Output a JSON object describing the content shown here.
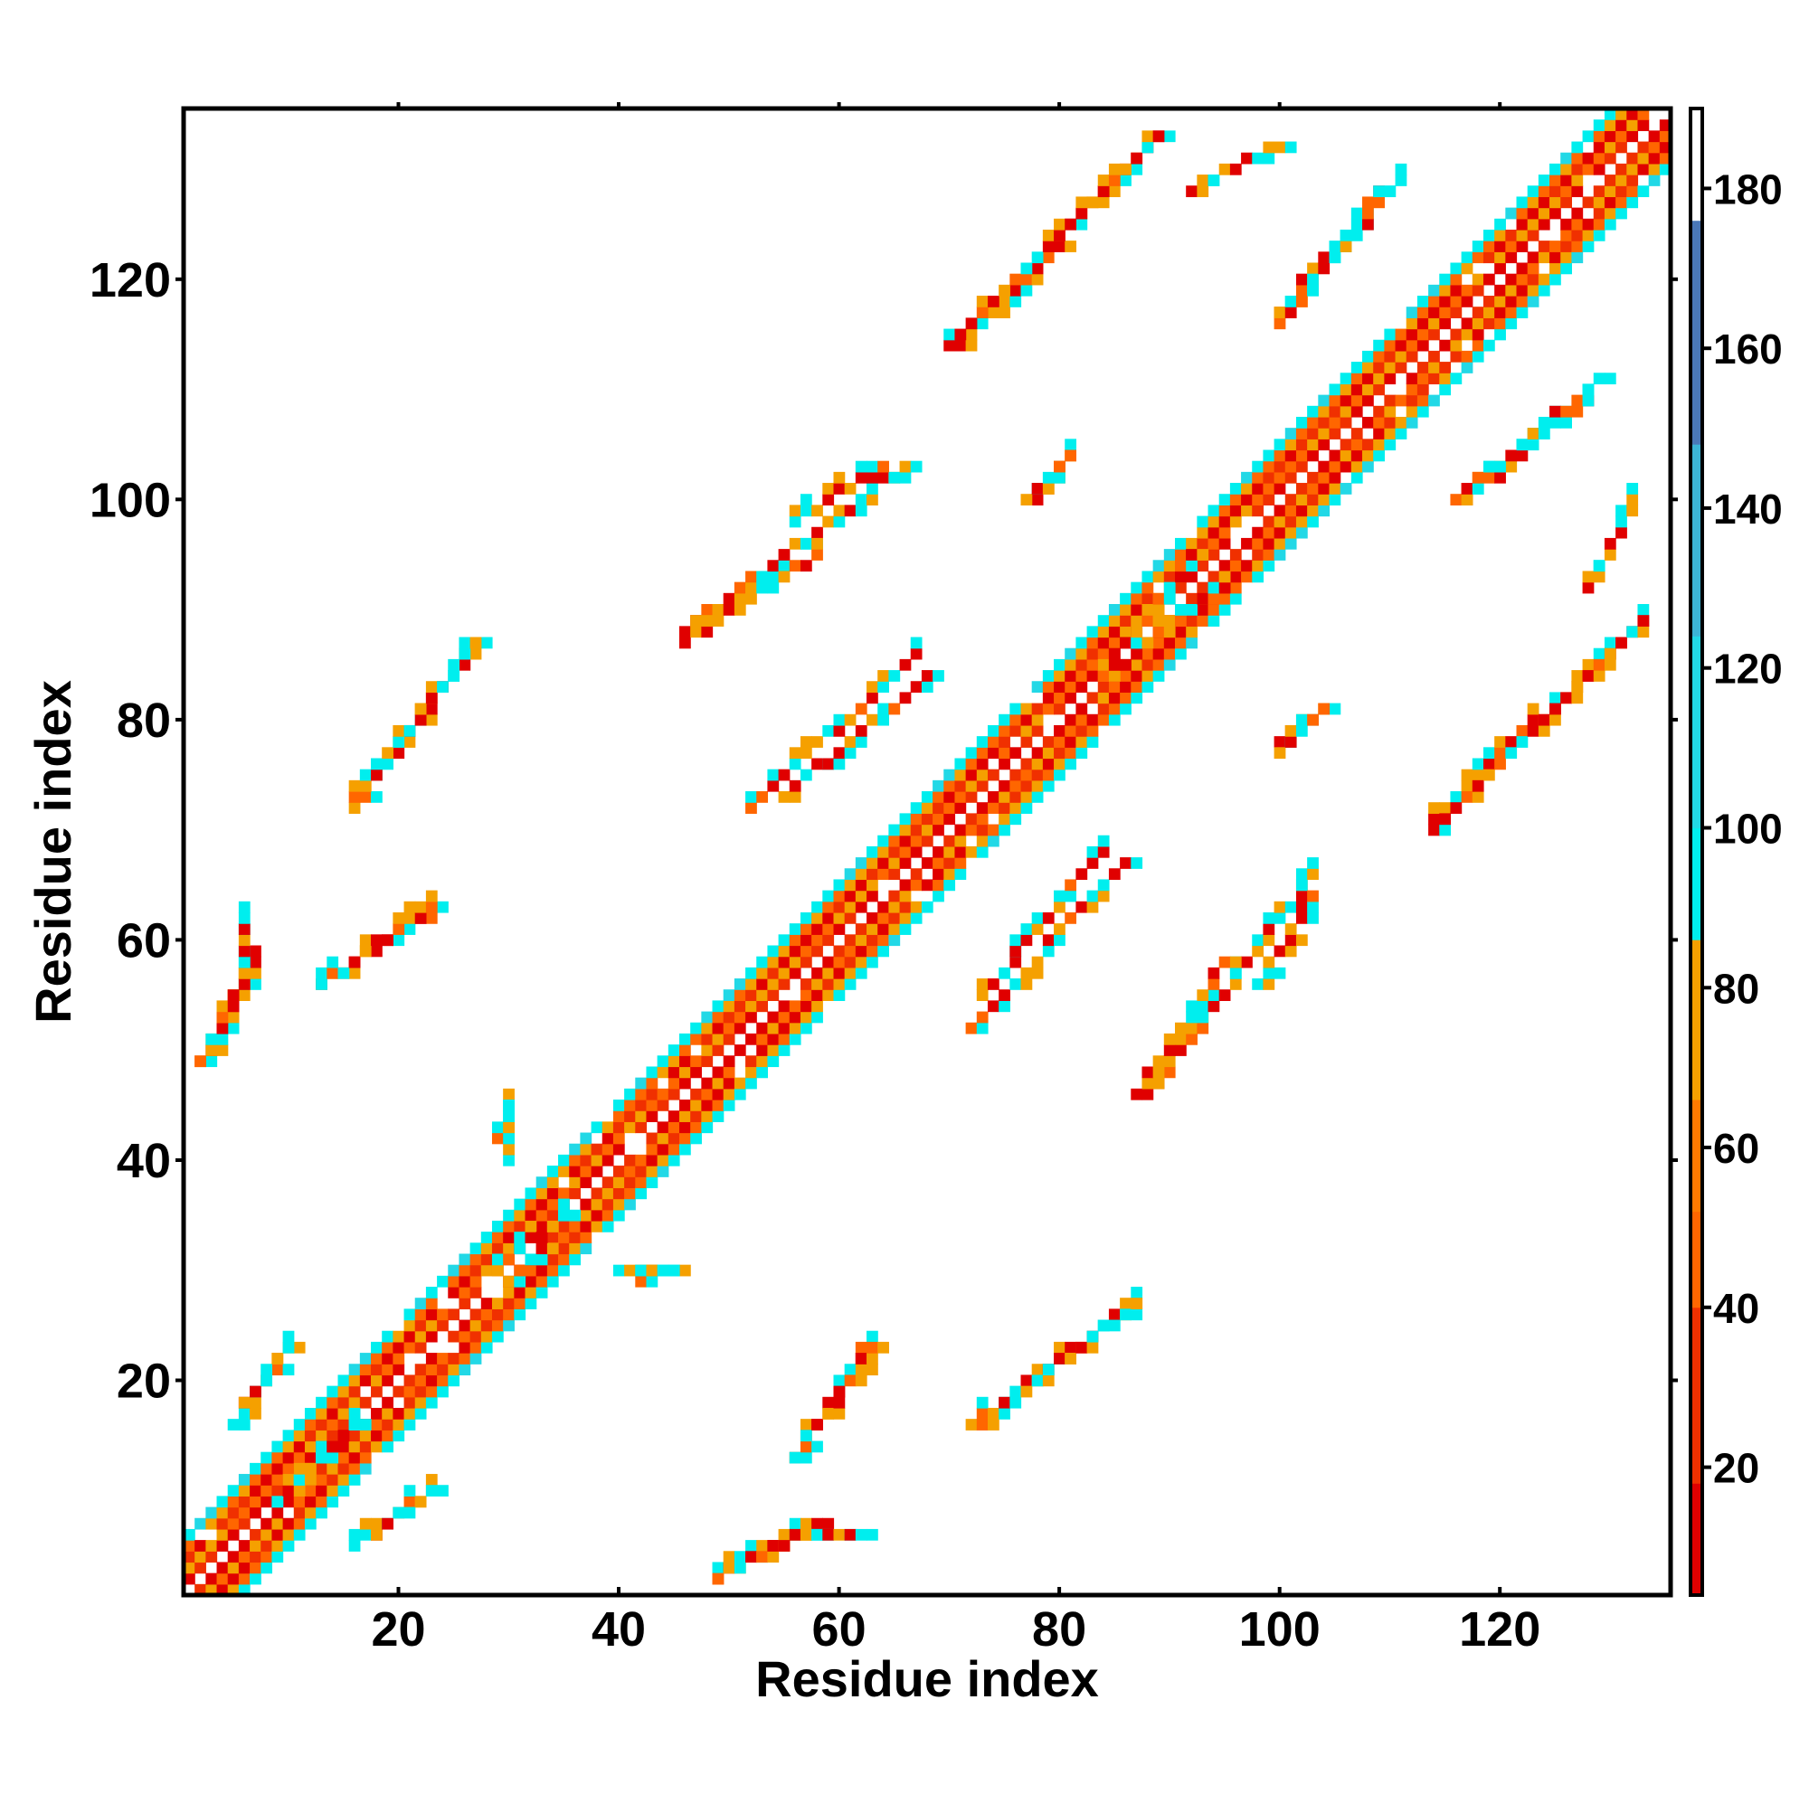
{
  "chart_data": {
    "type": "heatmap",
    "title": "",
    "xlabel": "Residue index",
    "ylabel": "Residue index",
    "xlim": [
      1,
      135
    ],
    "ylim": [
      1,
      135
    ],
    "x_ticks": [
      20,
      40,
      60,
      80,
      100,
      120
    ],
    "y_ticks": [
      20,
      40,
      60,
      80,
      100,
      120
    ],
    "colorbar": {
      "ticks": [
        20,
        40,
        60,
        80,
        100,
        120,
        140,
        160,
        180
      ],
      "range": [
        4,
        190
      ],
      "bands": [
        {
          "from": 4,
          "to": 18,
          "color": "#e00000"
        },
        {
          "from": 18,
          "to": 40,
          "color": "#f03000"
        },
        {
          "from": 40,
          "to": 52,
          "color": "#ff6600"
        },
        {
          "from": 52,
          "to": 66,
          "color": "#ff7a00"
        },
        {
          "from": 66,
          "to": 86,
          "color": "#f5a000"
        },
        {
          "from": 86,
          "to": 100,
          "color": "#00eeee"
        },
        {
          "from": 100,
          "to": 124,
          "color": "#22d8e6"
        },
        {
          "from": 124,
          "to": 148,
          "color": "#3cb4d6"
        },
        {
          "from": 148,
          "to": 176,
          "color": "#4a78b8"
        },
        {
          "from": 176,
          "to": 190,
          "color": "#ffffff"
        }
      ]
    },
    "diagonal_band": {
      "residue_start": 1,
      "residue_end": 135,
      "half_width": 5
    },
    "contact_segments": [
      {
        "x": [
          16,
          27
        ],
        "y": [
          72,
          87
        ]
      },
      {
        "x": [
          2,
          7
        ],
        "y": [
          49,
          59
        ]
      },
      {
        "x": [
          13,
          24
        ],
        "y": [
          56,
          63
        ]
      },
      {
        "x": [
          5,
          10
        ],
        "y": [
          16,
          23
        ]
      },
      {
        "x": [
          9,
          16
        ],
        "y": [
          9,
          16
        ]
      },
      {
        "x": [
          18,
          23
        ],
        "y": [
          6,
          10
        ]
      },
      {
        "x": [
          49,
          56
        ],
        "y": [
          2,
          6
        ]
      },
      {
        "x": [
          56,
          62
        ],
        "y": [
          6,
          6
        ]
      },
      {
        "x": [
          40,
          45
        ],
        "y": [
          30,
          30
        ]
      },
      {
        "x": [
          30,
          35
        ],
        "y": [
          29,
          35
        ]
      },
      {
        "x": [
          29,
          30
        ],
        "y": [
          42,
          45
        ]
      },
      {
        "x": [
          56,
          63
        ],
        "y": [
          13,
          23
        ]
      },
      {
        "x": [
          73,
          87
        ],
        "y": [
          16,
          27
        ]
      },
      {
        "x": [
          46,
          66
        ],
        "y": [
          88,
          103
        ]
      },
      {
        "x": [
          55,
          68
        ],
        "y": [
          73,
          84
        ]
      },
      {
        "x": [
          72,
          86
        ],
        "y": [
          52,
          67
        ]
      },
      {
        "x": [
          87,
          95
        ],
        "y": [
          46,
          58
        ]
      },
      {
        "x": [
          98,
          103
        ],
        "y": [
          56,
          64
        ]
      },
      {
        "x": [
          71,
          89
        ],
        "y": [
          114,
          133
        ]
      },
      {
        "x": [
          92,
          100
        ],
        "y": [
          128,
          132
        ]
      },
      {
        "x": [
          100,
          109
        ],
        "y": [
          117,
          128
        ]
      },
      {
        "x": [
          114,
          133
        ],
        "y": [
          70,
          89
        ]
      },
      {
        "x": [
          116,
          129
        ],
        "y": [
          100,
          111
        ]
      },
      {
        "x": [
          100,
          104
        ],
        "y": [
          78,
          81
        ]
      },
      {
        "x": [
          77,
          81
        ],
        "y": [
          100,
          104
        ]
      },
      {
        "x": [
          84,
          92
        ],
        "y": [
          84,
          95
        ]
      }
    ]
  }
}
